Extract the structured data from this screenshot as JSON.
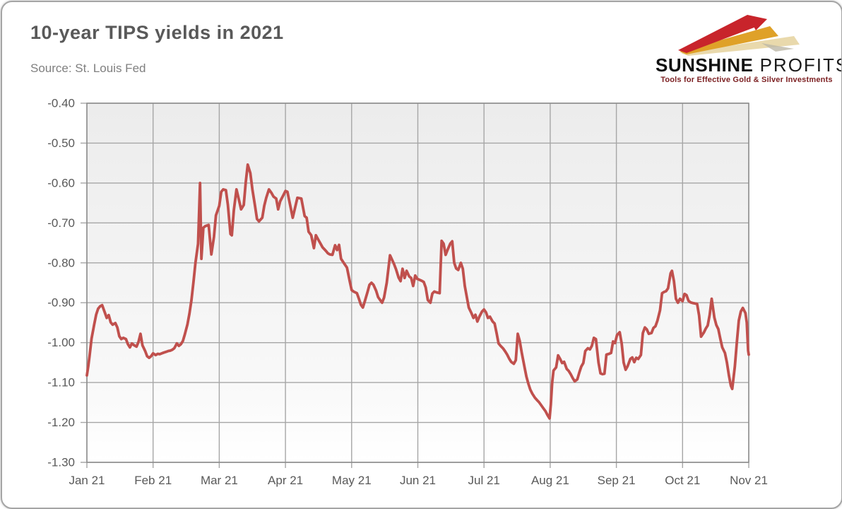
{
  "header": {
    "title": "10-year TIPS yields in 2021",
    "source": "Source: St. Louis Fed"
  },
  "logo": {
    "brand_primary": "SUNSHINE",
    "brand_secondary": " PROFITS",
    "tagline": "Tools for Effective Gold & Silver Investments",
    "beam_red": "#C8242B",
    "beam_gold": "#DFA128",
    "beam_sand": "#E9D9AC"
  },
  "chart_data": {
    "type": "line",
    "title": "10-year TIPS yields in 2021",
    "series_name": "10-year TIPS yield (%)",
    "line_color": "#C0504D",
    "grid": true,
    "plot_bg_top": "#ECECEC",
    "plot_bg_bottom": "#FFFFFF",
    "grid_color": "#A6A6A6",
    "label_color": "#595959",
    "x_tick_labels": [
      "Jan 21",
      "Feb 21",
      "Mar 21",
      "Apr 21",
      "May 21",
      "Jun 21",
      "Jul 21",
      "Aug 21",
      "Sep 21",
      "Oct 21",
      "Nov 21"
    ],
    "y_ticks": [
      -0.4,
      -0.5,
      -0.6,
      -0.7,
      -0.8,
      -0.9,
      -1.0,
      -1.1,
      -1.2,
      -1.3
    ],
    "ylim": [
      -1.3,
      -0.4
    ],
    "xlim_months": [
      0,
      10
    ],
    "points": [
      [
        0,
        -1.082
      ],
      [
        0.02,
        -1.06
      ],
      [
        0.04,
        -1.035
      ],
      [
        0.07,
        -0.99
      ],
      [
        0.11,
        -0.955
      ],
      [
        0.14,
        -0.93
      ],
      [
        0.17,
        -0.915
      ],
      [
        0.2,
        -0.909
      ],
      [
        0.23,
        -0.906
      ],
      [
        0.27,
        -0.924
      ],
      [
        0.3,
        -0.938
      ],
      [
        0.33,
        -0.931
      ],
      [
        0.36,
        -0.949
      ],
      [
        0.39,
        -0.955
      ],
      [
        0.43,
        -0.951
      ],
      [
        0.46,
        -0.962
      ],
      [
        0.49,
        -0.984
      ],
      [
        0.52,
        -0.991
      ],
      [
        0.55,
        -0.988
      ],
      [
        0.59,
        -0.991
      ],
      [
        0.62,
        -1.004
      ],
      [
        0.65,
        -1.012
      ],
      [
        0.68,
        -1.002
      ],
      [
        0.71,
        -1.006
      ],
      [
        0.75,
        -1.01
      ],
      [
        0.78,
        -0.998
      ],
      [
        0.81,
        -0.978
      ],
      [
        0.84,
        -1.007
      ],
      [
        0.88,
        -1.021
      ],
      [
        0.91,
        -1.034
      ],
      [
        0.94,
        -1.038
      ],
      [
        0.97,
        -1.034
      ],
      [
        1.0,
        -1.027
      ],
      [
        1.04,
        -1.031
      ],
      [
        1.07,
        -1.028
      ],
      [
        1.1,
        -1.029
      ],
      [
        1.13,
        -1.027
      ],
      [
        1.16,
        -1.025
      ],
      [
        1.2,
        -1.023
      ],
      [
        1.23,
        -1.021
      ],
      [
        1.26,
        -1.02
      ],
      [
        1.29,
        -1.018
      ],
      [
        1.32,
        -1.014
      ],
      [
        1.36,
        -1.002
      ],
      [
        1.39,
        -1.008
      ],
      [
        1.42,
        -1.004
      ],
      [
        1.45,
        -0.996
      ],
      [
        1.48,
        -0.979
      ],
      [
        1.52,
        -0.954
      ],
      [
        1.55,
        -0.927
      ],
      [
        1.58,
        -0.894
      ],
      [
        1.61,
        -0.848
      ],
      [
        1.64,
        -0.8
      ],
      [
        1.68,
        -0.752
      ],
      [
        1.71,
        -0.6
      ],
      [
        1.73,
        -0.79
      ],
      [
        1.76,
        -0.712
      ],
      [
        1.79,
        -0.708
      ],
      [
        1.84,
        -0.705
      ],
      [
        1.88,
        -0.779
      ],
      [
        1.92,
        -0.735
      ],
      [
        1.95,
        -0.681
      ],
      [
        2.0,
        -0.657
      ],
      [
        2.03,
        -0.622
      ],
      [
        2.06,
        -0.616
      ],
      [
        2.1,
        -0.618
      ],
      [
        2.13,
        -0.655
      ],
      [
        2.17,
        -0.728
      ],
      [
        2.19,
        -0.731
      ],
      [
        2.22,
        -0.669
      ],
      [
        2.26,
        -0.616
      ],
      [
        2.29,
        -0.637
      ],
      [
        2.33,
        -0.666
      ],
      [
        2.37,
        -0.655
      ],
      [
        2.4,
        -0.598
      ],
      [
        2.43,
        -0.554
      ],
      [
        2.47,
        -0.575
      ],
      [
        2.5,
        -0.616
      ],
      [
        2.54,
        -0.657
      ],
      [
        2.57,
        -0.69
      ],
      [
        2.6,
        -0.696
      ],
      [
        2.65,
        -0.687
      ],
      [
        2.68,
        -0.657
      ],
      [
        2.71,
        -0.637
      ],
      [
        2.75,
        -0.616
      ],
      [
        2.79,
        -0.625
      ],
      [
        2.82,
        -0.634
      ],
      [
        2.86,
        -0.639
      ],
      [
        2.89,
        -0.666
      ],
      [
        2.92,
        -0.646
      ],
      [
        2.97,
        -0.63
      ],
      [
        3.0,
        -0.62
      ],
      [
        3.03,
        -0.622
      ],
      [
        3.07,
        -0.655
      ],
      [
        3.11,
        -0.687
      ],
      [
        3.14,
        -0.666
      ],
      [
        3.18,
        -0.637
      ],
      [
        3.24,
        -0.639
      ],
      [
        3.29,
        -0.683
      ],
      [
        3.32,
        -0.687
      ],
      [
        3.35,
        -0.722
      ],
      [
        3.39,
        -0.731
      ],
      [
        3.43,
        -0.763
      ],
      [
        3.46,
        -0.731
      ],
      [
        3.5,
        -0.743
      ],
      [
        3.53,
        -0.752
      ],
      [
        3.56,
        -0.761
      ],
      [
        3.61,
        -0.77
      ],
      [
        3.64,
        -0.776
      ],
      [
        3.67,
        -0.779
      ],
      [
        3.71,
        -0.78
      ],
      [
        3.75,
        -0.756
      ],
      [
        3.78,
        -0.768
      ],
      [
        3.81,
        -0.755
      ],
      [
        3.84,
        -0.79
      ],
      [
        3.88,
        -0.8
      ],
      [
        3.93,
        -0.812
      ],
      [
        3.97,
        -0.845
      ],
      [
        4.0,
        -0.868
      ],
      [
        4.03,
        -0.872
      ],
      [
        4.08,
        -0.876
      ],
      [
        4.11,
        -0.89
      ],
      [
        4.14,
        -0.905
      ],
      [
        4.17,
        -0.912
      ],
      [
        4.2,
        -0.896
      ],
      [
        4.24,
        -0.873
      ],
      [
        4.27,
        -0.855
      ],
      [
        4.3,
        -0.85
      ],
      [
        4.33,
        -0.855
      ],
      [
        4.37,
        -0.87
      ],
      [
        4.4,
        -0.886
      ],
      [
        4.43,
        -0.893
      ],
      [
        4.46,
        -0.9
      ],
      [
        4.49,
        -0.887
      ],
      [
        4.53,
        -0.85
      ],
      [
        4.58,
        -0.781
      ],
      [
        4.61,
        -0.792
      ],
      [
        4.64,
        -0.803
      ],
      [
        4.67,
        -0.816
      ],
      [
        4.71,
        -0.837
      ],
      [
        4.74,
        -0.846
      ],
      [
        4.77,
        -0.815
      ],
      [
        4.8,
        -0.838
      ],
      [
        4.83,
        -0.82
      ],
      [
        4.87,
        -0.834
      ],
      [
        4.9,
        -0.838
      ],
      [
        4.93,
        -0.858
      ],
      [
        4.96,
        -0.832
      ],
      [
        4.99,
        -0.84
      ],
      [
        5.06,
        -0.845
      ],
      [
        5.09,
        -0.848
      ],
      [
        5.12,
        -0.862
      ],
      [
        5.15,
        -0.893
      ],
      [
        5.19,
        -0.9
      ],
      [
        5.22,
        -0.877
      ],
      [
        5.25,
        -0.872
      ],
      [
        5.28,
        -0.874
      ],
      [
        5.33,
        -0.876
      ],
      [
        5.36,
        -0.745
      ],
      [
        5.39,
        -0.752
      ],
      [
        5.42,
        -0.78
      ],
      [
        5.45,
        -0.767
      ],
      [
        5.49,
        -0.752
      ],
      [
        5.52,
        -0.746
      ],
      [
        5.55,
        -0.8
      ],
      [
        5.58,
        -0.814
      ],
      [
        5.61,
        -0.818
      ],
      [
        5.65,
        -0.8
      ],
      [
        5.68,
        -0.815
      ],
      [
        5.71,
        -0.858
      ],
      [
        5.74,
        -0.885
      ],
      [
        5.77,
        -0.912
      ],
      [
        5.81,
        -0.926
      ],
      [
        5.84,
        -0.938
      ],
      [
        5.87,
        -0.93
      ],
      [
        5.9,
        -0.947
      ],
      [
        5.93,
        -0.935
      ],
      [
        5.97,
        -0.922
      ],
      [
        6.0,
        -0.917
      ],
      [
        6.03,
        -0.924
      ],
      [
        6.06,
        -0.938
      ],
      [
        6.09,
        -0.935
      ],
      [
        6.13,
        -0.947
      ],
      [
        6.16,
        -0.952
      ],
      [
        6.19,
        -0.976
      ],
      [
        6.22,
        -1.002
      ],
      [
        6.25,
        -1.008
      ],
      [
        6.29,
        -1.015
      ],
      [
        6.32,
        -1.022
      ],
      [
        6.35,
        -1.03
      ],
      [
        6.38,
        -1.04
      ],
      [
        6.41,
        -1.048
      ],
      [
        6.45,
        -1.053
      ],
      [
        6.48,
        -1.044
      ],
      [
        6.51,
        -0.978
      ],
      [
        6.54,
        -0.996
      ],
      [
        6.57,
        -1.025
      ],
      [
        6.61,
        -1.06
      ],
      [
        6.64,
        -1.085
      ],
      [
        6.67,
        -1.103
      ],
      [
        6.7,
        -1.118
      ],
      [
        6.73,
        -1.128
      ],
      [
        6.77,
        -1.138
      ],
      [
        6.8,
        -1.144
      ],
      [
        6.83,
        -1.149
      ],
      [
        6.86,
        -1.156
      ],
      [
        6.89,
        -1.163
      ],
      [
        6.93,
        -1.172
      ],
      [
        6.96,
        -1.182
      ],
      [
        6.99,
        -1.19
      ],
      [
        7.01,
        -1.155
      ],
      [
        7.03,
        -1.1
      ],
      [
        7.05,
        -1.07
      ],
      [
        7.09,
        -1.062
      ],
      [
        7.12,
        -1.032
      ],
      [
        7.15,
        -1.041
      ],
      [
        7.18,
        -1.051
      ],
      [
        7.21,
        -1.048
      ],
      [
        7.25,
        -1.066
      ],
      [
        7.28,
        -1.071
      ],
      [
        7.31,
        -1.079
      ],
      [
        7.34,
        -1.089
      ],
      [
        7.37,
        -1.097
      ],
      [
        7.41,
        -1.092
      ],
      [
        7.44,
        -1.075
      ],
      [
        7.47,
        -1.06
      ],
      [
        7.5,
        -1.051
      ],
      [
        7.53,
        -1.021
      ],
      [
        7.57,
        -1.014
      ],
      [
        7.6,
        -1.017
      ],
      [
        7.63,
        -1.008
      ],
      [
        7.66,
        -0.988
      ],
      [
        7.69,
        -0.991
      ],
      [
        7.73,
        -1.05
      ],
      [
        7.76,
        -1.077
      ],
      [
        7.79,
        -1.079
      ],
      [
        7.82,
        -1.078
      ],
      [
        7.85,
        -1.03
      ],
      [
        7.89,
        -1.028
      ],
      [
        7.92,
        -1.026
      ],
      [
        7.95,
        -0.997
      ],
      [
        7.98,
        -1.001
      ],
      [
        8.01,
        -0.981
      ],
      [
        8.05,
        -0.974
      ],
      [
        8.08,
        -1.002
      ],
      [
        8.11,
        -1.05
      ],
      [
        8.14,
        -1.068
      ],
      [
        8.17,
        -1.059
      ],
      [
        8.21,
        -1.041
      ],
      [
        8.24,
        -1.037
      ],
      [
        8.27,
        -1.049
      ],
      [
        8.3,
        -1.038
      ],
      [
        8.33,
        -1.041
      ],
      [
        8.37,
        -1.031
      ],
      [
        8.4,
        -0.976
      ],
      [
        8.43,
        -0.962
      ],
      [
        8.46,
        -0.967
      ],
      [
        8.49,
        -0.978
      ],
      [
        8.53,
        -0.976
      ],
      [
        8.56,
        -0.963
      ],
      [
        8.59,
        -0.959
      ],
      [
        8.62,
        -0.945
      ],
      [
        8.66,
        -0.919
      ],
      [
        8.69,
        -0.876
      ],
      [
        8.72,
        -0.873
      ],
      [
        8.75,
        -0.871
      ],
      [
        8.78,
        -0.864
      ],
      [
        8.82,
        -0.826
      ],
      [
        8.84,
        -0.82
      ],
      [
        8.87,
        -0.846
      ],
      [
        8.9,
        -0.89
      ],
      [
        8.93,
        -0.9
      ],
      [
        8.96,
        -0.89
      ],
      [
        9.0,
        -0.896
      ],
      [
        9.03,
        -0.878
      ],
      [
        9.06,
        -0.881
      ],
      [
        9.09,
        -0.895
      ],
      [
        9.12,
        -0.899
      ],
      [
        9.16,
        -0.901
      ],
      [
        9.22,
        -0.903
      ],
      [
        9.25,
        -0.932
      ],
      [
        9.28,
        -0.985
      ],
      [
        9.32,
        -0.975
      ],
      [
        9.35,
        -0.965
      ],
      [
        9.38,
        -0.957
      ],
      [
        9.41,
        -0.93
      ],
      [
        9.44,
        -0.89
      ],
      [
        9.48,
        -0.937
      ],
      [
        9.51,
        -0.956
      ],
      [
        9.54,
        -0.966
      ],
      [
        9.57,
        -0.99
      ],
      [
        9.6,
        -1.012
      ],
      [
        9.64,
        -1.026
      ],
      [
        9.67,
        -1.05
      ],
      [
        9.7,
        -1.082
      ],
      [
        9.73,
        -1.108
      ],
      [
        9.75,
        -1.116
      ],
      [
        9.79,
        -1.06
      ],
      [
        9.82,
        -1.0
      ],
      [
        9.85,
        -0.945
      ],
      [
        9.88,
        -0.922
      ],
      [
        9.91,
        -0.913
      ],
      [
        9.95,
        -0.926
      ],
      [
        9.97,
        -0.95
      ],
      [
        9.99,
        -1.02
      ],
      [
        10.0,
        -1.03
      ]
    ]
  }
}
